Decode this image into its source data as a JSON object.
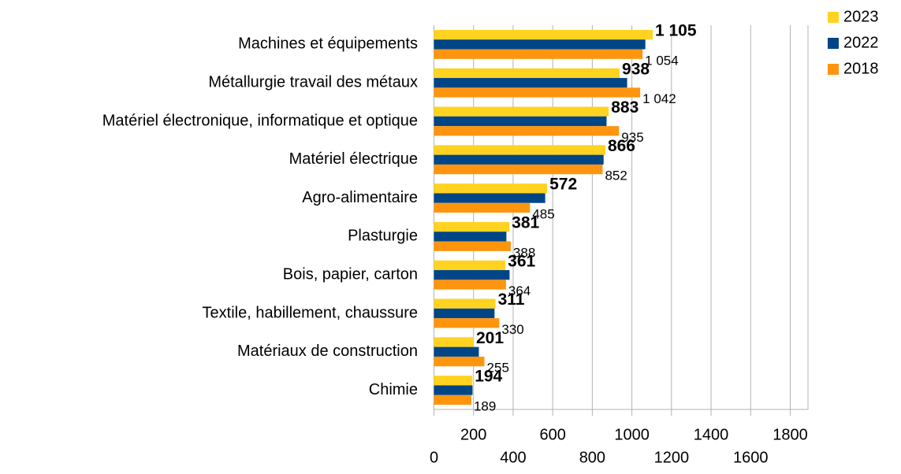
{
  "chart_data": {
    "type": "bar",
    "orientation": "horizontal",
    "categories": [
      "Machines et équipements",
      "Métallurgie travail des métaux",
      "Matériel électronique, informatique et optique",
      "Matériel électrique",
      "Agro-alimentaire",
      "Plasturgie",
      "Bois, papier, carton",
      "Textile, habillement, chaussure",
      "Matériaux de construction",
      "Chimie"
    ],
    "series": [
      {
        "name": "2023",
        "color": "#ffd320",
        "values": [
          1105,
          938,
          883,
          866,
          572,
          381,
          361,
          311,
          201,
          194
        ],
        "value_labels": [
          "1 105",
          "938",
          "883",
          "866",
          "572",
          "381",
          "361",
          "311",
          "201",
          "194"
        ]
      },
      {
        "name": "2022",
        "color": "#004586",
        "values": [
          1068,
          976,
          872,
          857,
          562,
          366,
          382,
          306,
          227,
          195
        ]
      },
      {
        "name": "2018",
        "color": "#ff950e",
        "values": [
          1054,
          1042,
          935,
          852,
          485,
          388,
          364,
          330,
          255,
          189
        ],
        "value_labels": [
          "1 054",
          "1 042",
          "935",
          "852",
          "485",
          "388",
          "364",
          "330",
          "255",
          "189"
        ]
      }
    ],
    "xlim": [
      0,
      1800
    ],
    "xticks": [
      0,
      200,
      400,
      600,
      800,
      1000,
      1200,
      1400,
      1600,
      1800
    ],
    "grid": true,
    "legend": "top-right"
  }
}
